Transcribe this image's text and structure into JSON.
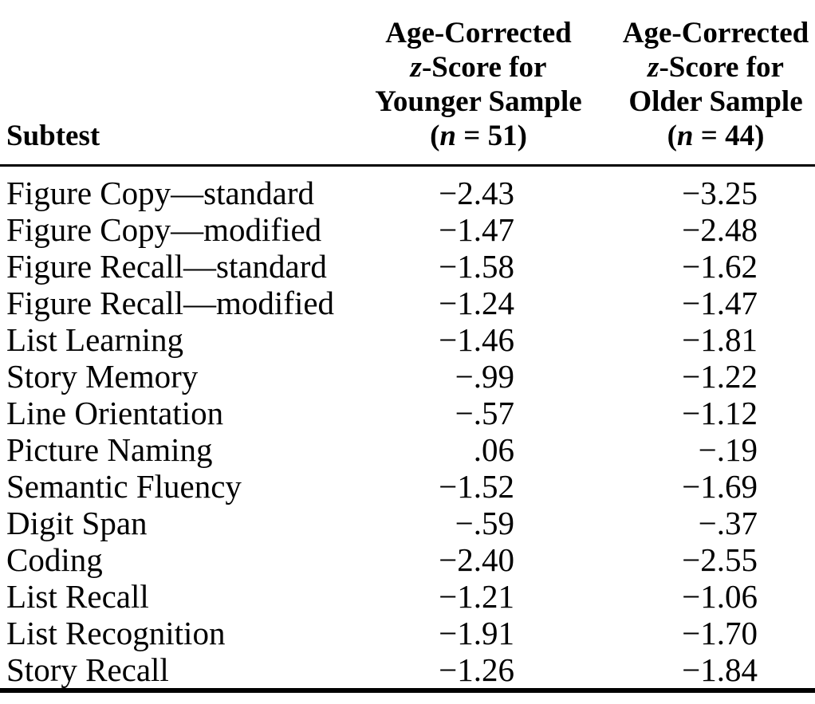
{
  "colors": {
    "background": "#ffffff",
    "text": "#000000",
    "rule": "#000000"
  },
  "table": {
    "header": {
      "subtest": "Subtest",
      "younger_lines": [
        [
          {
            "t": "Age-Corrected"
          }
        ],
        [
          {
            "t": "z",
            "i": true
          },
          {
            "t": "-Score for"
          }
        ],
        [
          {
            "t": "Younger Sample"
          }
        ],
        [
          {
            "t": "("
          },
          {
            "t": "n",
            "i": true
          },
          {
            "t": " = 51)"
          }
        ]
      ],
      "older_lines": [
        [
          {
            "t": "Age-Corrected"
          }
        ],
        [
          {
            "t": "z",
            "i": true
          },
          {
            "t": "-Score for"
          }
        ],
        [
          {
            "t": "Older Sample"
          }
        ],
        [
          {
            "t": "("
          },
          {
            "t": "n",
            "i": true
          },
          {
            "t": " = 44)"
          }
        ]
      ]
    },
    "rows": [
      {
        "subtest": "Figure Copy—standard",
        "younger": "−2.43",
        "older": "−3.25"
      },
      {
        "subtest": "Figure Copy—modified",
        "younger": "−1.47",
        "older": "−2.48"
      },
      {
        "subtest": "Figure Recall—standard",
        "younger": "−1.58",
        "older": "−1.62"
      },
      {
        "subtest": "Figure Recall—modified",
        "younger": "−1.24",
        "older": "−1.47"
      },
      {
        "subtest": "List Learning",
        "younger": "−1.46",
        "older": "−1.81"
      },
      {
        "subtest": "Story Memory",
        "younger": "−.99",
        "older": "−1.22"
      },
      {
        "subtest": "Line Orientation",
        "younger": "−.57",
        "older": "−1.12"
      },
      {
        "subtest": "Picture Naming",
        "younger": ".06",
        "older": "−.19"
      },
      {
        "subtest": "Semantic Fluency",
        "younger": "−1.52",
        "older": "−1.69"
      },
      {
        "subtest": "Digit Span",
        "younger": "−.59",
        "older": "−.37"
      },
      {
        "subtest": "Coding",
        "younger": "−2.40",
        "older": "−2.55"
      },
      {
        "subtest": "List Recall",
        "younger": "−1.21",
        "older": "−1.06"
      },
      {
        "subtest": "List Recognition",
        "younger": "−1.91",
        "older": "−1.70"
      },
      {
        "subtest": "Story Recall",
        "younger": "−1.26",
        "older": "−1.84"
      }
    ]
  },
  "chart_data": {
    "type": "table",
    "title": "",
    "columns": [
      "Subtest",
      "Age-Corrected z-Score for Younger Sample (n = 51)",
      "Age-Corrected z-Score for Older Sample (n = 44)"
    ],
    "rows": [
      [
        "Figure Copy—standard",
        -2.43,
        -3.25
      ],
      [
        "Figure Copy—modified",
        -1.47,
        -2.48
      ],
      [
        "Figure Recall—standard",
        -1.58,
        -1.62
      ],
      [
        "Figure Recall—modified",
        -1.24,
        -1.47
      ],
      [
        "List Learning",
        -1.46,
        -1.81
      ],
      [
        "Story Memory",
        -0.99,
        -1.22
      ],
      [
        "Line Orientation",
        -0.57,
        -1.12
      ],
      [
        "Picture Naming",
        0.06,
        -0.19
      ],
      [
        "Semantic Fluency",
        -1.52,
        -1.69
      ],
      [
        "Digit Span",
        -0.59,
        -0.37
      ],
      [
        "Coding",
        -2.4,
        -2.55
      ],
      [
        "List Recall",
        -1.21,
        -1.06
      ],
      [
        "List Recognition",
        -1.91,
        -1.7
      ],
      [
        "Story Recall",
        -1.26,
        -1.84
      ]
    ]
  }
}
